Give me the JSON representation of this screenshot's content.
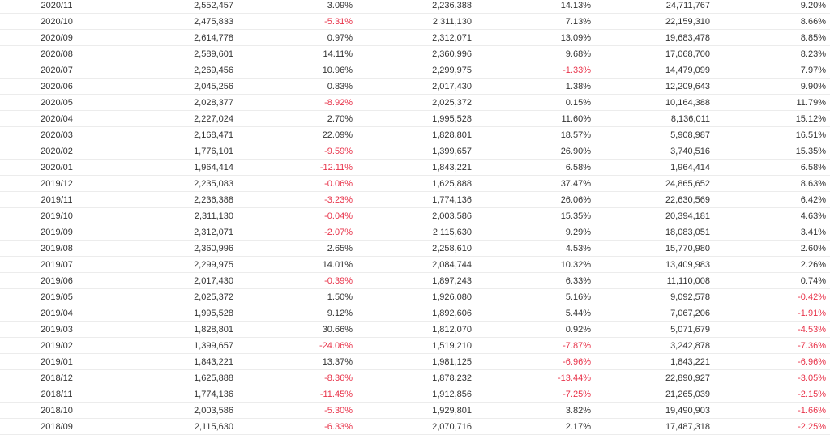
{
  "colors": {
    "text": "#333333",
    "negative": "#e8334a",
    "row_border": "#ececec"
  },
  "rows": [
    {
      "month": "2020/11",
      "v1": "2,552,457",
      "p1": "3.09%",
      "v2": "2,236,388",
      "p2": "14.13%",
      "v3": "24,711,767",
      "p3": "9.20%"
    },
    {
      "month": "2020/10",
      "v1": "2,475,833",
      "p1": "-5.31%",
      "v2": "2,311,130",
      "p2": "7.13%",
      "v3": "22,159,310",
      "p3": "8.66%"
    },
    {
      "month": "2020/09",
      "v1": "2,614,778",
      "p1": "0.97%",
      "v2": "2,312,071",
      "p2": "13.09%",
      "v3": "19,683,478",
      "p3": "8.85%"
    },
    {
      "month": "2020/08",
      "v1": "2,589,601",
      "p1": "14.11%",
      "v2": "2,360,996",
      "p2": "9.68%",
      "v3": "17,068,700",
      "p3": "8.23%"
    },
    {
      "month": "2020/07",
      "v1": "2,269,456",
      "p1": "10.96%",
      "v2": "2,299,975",
      "p2": "-1.33%",
      "v3": "14,479,099",
      "p3": "7.97%"
    },
    {
      "month": "2020/06",
      "v1": "2,045,256",
      "p1": "0.83%",
      "v2": "2,017,430",
      "p2": "1.38%",
      "v3": "12,209,643",
      "p3": "9.90%"
    },
    {
      "month": "2020/05",
      "v1": "2,028,377",
      "p1": "-8.92%",
      "v2": "2,025,372",
      "p2": "0.15%",
      "v3": "10,164,388",
      "p3": "11.79%"
    },
    {
      "month": "2020/04",
      "v1": "2,227,024",
      "p1": "2.70%",
      "v2": "1,995,528",
      "p2": "11.60%",
      "v3": "8,136,011",
      "p3": "15.12%"
    },
    {
      "month": "2020/03",
      "v1": "2,168,471",
      "p1": "22.09%",
      "v2": "1,828,801",
      "p2": "18.57%",
      "v3": "5,908,987",
      "p3": "16.51%"
    },
    {
      "month": "2020/02",
      "v1": "1,776,101",
      "p1": "-9.59%",
      "v2": "1,399,657",
      "p2": "26.90%",
      "v3": "3,740,516",
      "p3": "15.35%"
    },
    {
      "month": "2020/01",
      "v1": "1,964,414",
      "p1": "-12.11%",
      "v2": "1,843,221",
      "p2": "6.58%",
      "v3": "1,964,414",
      "p3": "6.58%"
    },
    {
      "month": "2019/12",
      "v1": "2,235,083",
      "p1": "-0.06%",
      "v2": "1,625,888",
      "p2": "37.47%",
      "v3": "24,865,652",
      "p3": "8.63%"
    },
    {
      "month": "2019/11",
      "v1": "2,236,388",
      "p1": "-3.23%",
      "v2": "1,774,136",
      "p2": "26.06%",
      "v3": "22,630,569",
      "p3": "6.42%"
    },
    {
      "month": "2019/10",
      "v1": "2,311,130",
      "p1": "-0.04%",
      "v2": "2,003,586",
      "p2": "15.35%",
      "v3": "20,394,181",
      "p3": "4.63%"
    },
    {
      "month": "2019/09",
      "v1": "2,312,071",
      "p1": "-2.07%",
      "v2": "2,115,630",
      "p2": "9.29%",
      "v3": "18,083,051",
      "p3": "3.41%"
    },
    {
      "month": "2019/08",
      "v1": "2,360,996",
      "p1": "2.65%",
      "v2": "2,258,610",
      "p2": "4.53%",
      "v3": "15,770,980",
      "p3": "2.60%"
    },
    {
      "month": "2019/07",
      "v1": "2,299,975",
      "p1": "14.01%",
      "v2": "2,084,744",
      "p2": "10.32%",
      "v3": "13,409,983",
      "p3": "2.26%"
    },
    {
      "month": "2019/06",
      "v1": "2,017,430",
      "p1": "-0.39%",
      "v2": "1,897,243",
      "p2": "6.33%",
      "v3": "11,110,008",
      "p3": "0.74%"
    },
    {
      "month": "2019/05",
      "v1": "2,025,372",
      "p1": "1.50%",
      "v2": "1,926,080",
      "p2": "5.16%",
      "v3": "9,092,578",
      "p3": "-0.42%"
    },
    {
      "month": "2019/04",
      "v1": "1,995,528",
      "p1": "9.12%",
      "v2": "1,892,606",
      "p2": "5.44%",
      "v3": "7,067,206",
      "p3": "-1.91%"
    },
    {
      "month": "2019/03",
      "v1": "1,828,801",
      "p1": "30.66%",
      "v2": "1,812,070",
      "p2": "0.92%",
      "v3": "5,071,679",
      "p3": "-4.53%"
    },
    {
      "month": "2019/02",
      "v1": "1,399,657",
      "p1": "-24.06%",
      "v2": "1,519,210",
      "p2": "-7.87%",
      "v3": "3,242,878",
      "p3": "-7.36%"
    },
    {
      "month": "2019/01",
      "v1": "1,843,221",
      "p1": "13.37%",
      "v2": "1,981,125",
      "p2": "-6.96%",
      "v3": "1,843,221",
      "p3": "-6.96%"
    },
    {
      "month": "2018/12",
      "v1": "1,625,888",
      "p1": "-8.36%",
      "v2": "1,878,232",
      "p2": "-13.44%",
      "v3": "22,890,927",
      "p3": "-3.05%"
    },
    {
      "month": "2018/11",
      "v1": "1,774,136",
      "p1": "-11.45%",
      "v2": "1,912,856",
      "p2": "-7.25%",
      "v3": "21,265,039",
      "p3": "-2.15%"
    },
    {
      "month": "2018/10",
      "v1": "2,003,586",
      "p1": "-5.30%",
      "v2": "1,929,801",
      "p2": "3.82%",
      "v3": "19,490,903",
      "p3": "-1.66%"
    },
    {
      "month": "2018/09",
      "v1": "2,115,630",
      "p1": "-6.33%",
      "v2": "2,070,716",
      "p2": "2.17%",
      "v3": "17,487,318",
      "p3": "-2.25%"
    }
  ]
}
